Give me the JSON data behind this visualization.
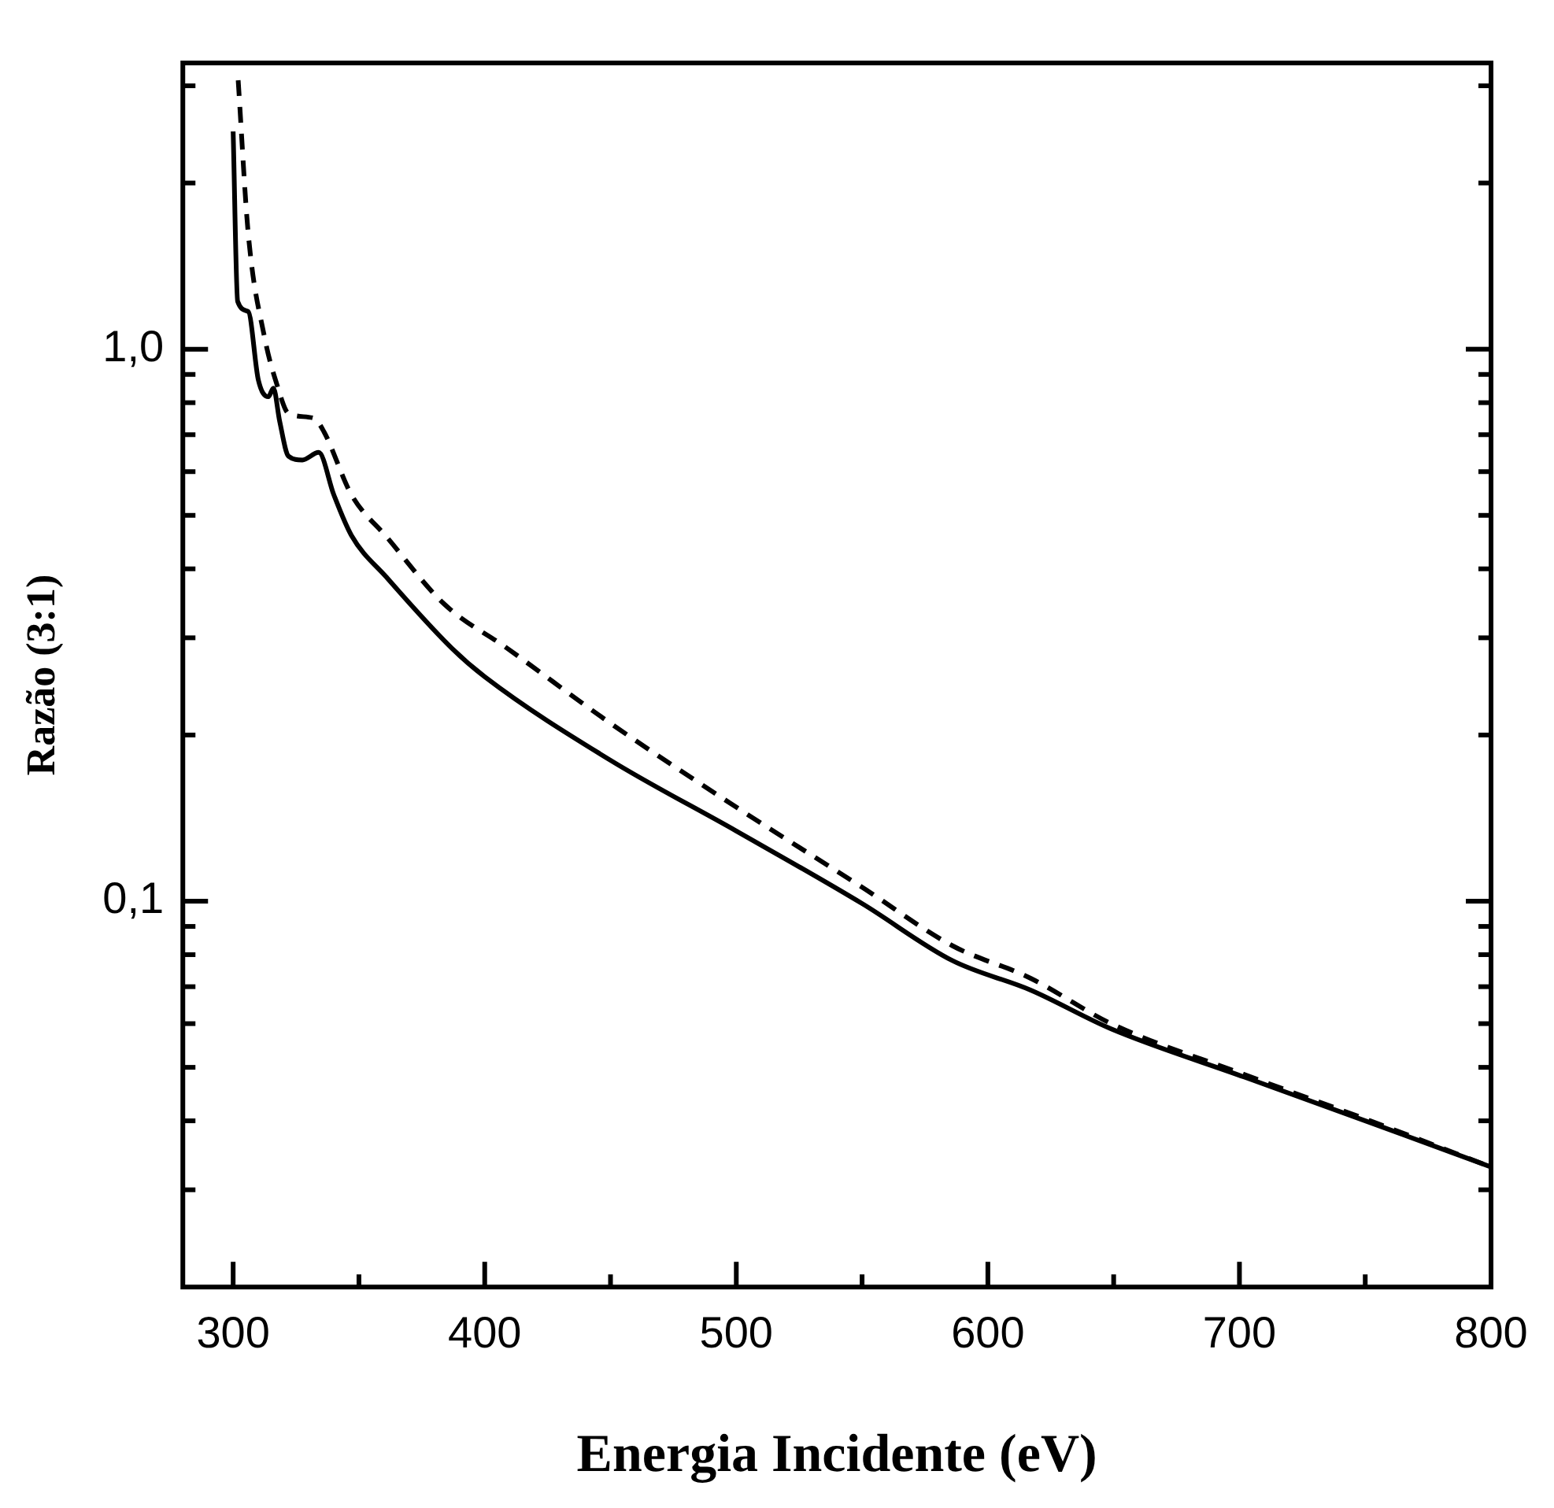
{
  "chart_data": {
    "type": "line",
    "xlabel": "Energia Incidente (eV)",
    "ylabel": "Razão (3:1)",
    "log": "y",
    "xlim": [
      280,
      800
    ],
    "ylim": [
      0.02,
      3.3
    ],
    "xticks": [
      300,
      {
        "value": 350,
        "label": null
      },
      400,
      {
        "value": 450,
        "label": null
      },
      500,
      {
        "value": 550,
        "label": null
      },
      600,
      {
        "value": 650,
        "label": null
      },
      700,
      {
        "value": 750,
        "label": null
      },
      800
    ],
    "yticks": [
      {
        "value": 0.03,
        "label": null
      },
      {
        "value": 0.04,
        "label": null
      },
      {
        "value": 0.05,
        "label": null
      },
      {
        "value": 0.06,
        "label": null
      },
      {
        "value": 0.07,
        "label": null
      },
      {
        "value": 0.08,
        "label": null
      },
      {
        "value": 0.09,
        "label": null
      },
      {
        "value": 0.1,
        "label": "0,1"
      },
      {
        "value": 0.2,
        "label": null
      },
      {
        "value": 0.3,
        "label": null
      },
      {
        "value": 0.4,
        "label": null
      },
      {
        "value": 0.5,
        "label": null
      },
      {
        "value": 0.6,
        "label": null
      },
      {
        "value": 0.7,
        "label": null
      },
      {
        "value": 0.8,
        "label": null
      },
      {
        "value": 0.9,
        "label": null
      },
      {
        "value": 1,
        "label": "1,0"
      },
      {
        "value": 2,
        "label": null
      },
      {
        "value": 3,
        "label": null
      }
    ],
    "grid": false,
    "legend": false,
    "marker": "none",
    "series": [
      {
        "color": "#000000",
        "line_style": "solid",
        "x": [
          300,
          301.8,
          306,
          310,
          314,
          316,
          318.5,
          322,
          327.5,
          334,
          340,
          347,
          361,
          387,
          400,
          450,
          500,
          550,
          586,
          617,
          649,
          702,
          752,
          800
        ],
        "values": [
          2.48,
          1.22,
          1.17,
          0.88,
          0.82,
          0.85,
          0.74,
          0.64,
          0.63,
          0.65,
          0.545,
          0.46,
          0.386,
          0.287,
          0.255,
          0.18,
          0.134,
          0.099,
          0.078,
          0.069,
          0.0587,
          0.048,
          0.0397,
          0.033
        ]
      },
      {
        "color": "#000000",
        "line_style": "dashed",
        "x": [
          302,
          306,
          312.5,
          317.5,
          322,
          332,
          336,
          347,
          361,
          384,
          409,
          450,
          500,
          550,
          586,
          617,
          649,
          702,
          752,
          800
        ],
        "values": [
          3.07,
          1.62,
          1.05,
          0.86,
          0.765,
          0.75,
          0.71,
          0.545,
          0.457,
          0.345,
          0.287,
          0.21,
          0.148,
          0.106,
          0.083,
          0.0725,
          0.06,
          0.0485,
          0.04,
          0.033
        ]
      }
    ]
  }
}
